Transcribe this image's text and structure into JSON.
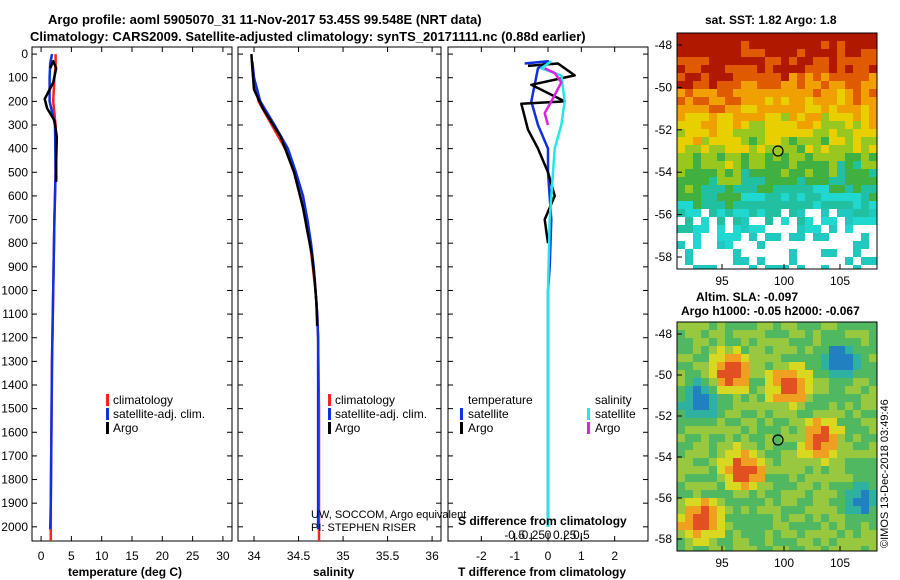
{
  "header": {
    "line1": "Argo profile: aoml 5905070_31 11-Nov-2017 53.45S 99.548E (NRT data)",
    "line2": "Climatology: CARS2009. Satellite-adjusted climatology: synTS_20171111.nc (0.88d earlier)"
  },
  "colors": {
    "climatology": "#ff2020",
    "satellite": "#1030e0",
    "argo": "#000000",
    "salinity_satellite": "#20e8e8",
    "salinity_argo": "#e020e0"
  },
  "depth_axis": {
    "ticks": [
      0,
      100,
      200,
      300,
      400,
      500,
      600,
      700,
      800,
      900,
      1000,
      1100,
      1200,
      1300,
      1400,
      1500,
      1600,
      1700,
      1800,
      1900,
      2000
    ],
    "max": 2060
  },
  "chart_data": [
    {
      "type": "line",
      "id": "temperature",
      "xlabel": "temperature (deg C)",
      "xlim": [
        -1.5,
        31.5
      ],
      "xticks": [
        0,
        5,
        10,
        15,
        20,
        25,
        30
      ],
      "xtick_labels": [
        "0",
        "5",
        "10",
        "15",
        "20",
        "25",
        "30"
      ],
      "ylim": [
        2060,
        -30
      ],
      "series": [
        {
          "name": "climatology",
          "color": "#ff2020",
          "points": [
            [
              2.4,
              0
            ],
            [
              2.4,
              50
            ],
            [
              2.2,
              100
            ],
            [
              2.0,
              200
            ],
            [
              2.4,
              300
            ],
            [
              2.4,
              500
            ],
            [
              2.2,
              700
            ],
            [
              2.0,
              1000
            ],
            [
              1.8,
              1300
            ],
            [
              1.7,
              1600
            ],
            [
              1.6,
              1900
            ],
            [
              1.6,
              2060
            ]
          ]
        },
        {
          "name": "satellite-adj. clim.",
          "color": "#1030e0",
          "points": [
            [
              1.8,
              0
            ],
            [
              1.5,
              40
            ],
            [
              1.4,
              100
            ],
            [
              1.4,
              200
            ],
            [
              2.3,
              300
            ],
            [
              2.4,
              500
            ],
            [
              2.2,
              700
            ],
            [
              2.0,
              1000
            ],
            [
              1.8,
              1300
            ],
            [
              1.7,
              1600
            ],
            [
              1.6,
              1900
            ],
            [
              1.5,
              2010
            ]
          ]
        },
        {
          "name": "Argo",
          "color": "#000000",
          "points": [
            [
              1.5,
              60
            ],
            [
              2.0,
              30
            ],
            [
              2.5,
              60
            ],
            [
              2.0,
              120
            ],
            [
              0.6,
              190
            ],
            [
              1.0,
              230
            ],
            [
              2.2,
              280
            ],
            [
              2.6,
              350
            ],
            [
              2.5,
              450
            ],
            [
              2.5,
              540
            ]
          ]
        }
      ],
      "legend": [
        "climatology",
        "satellite-adj. clim.",
        "Argo"
      ]
    },
    {
      "type": "line",
      "id": "salinity",
      "xlabel": "salinity",
      "xlim": [
        33.82,
        36.1
      ],
      "xticks": [
        34,
        34.5,
        35,
        35.5,
        36
      ],
      "xtick_labels": [
        "34",
        "34.5",
        "35",
        "35.5",
        "36"
      ],
      "ylim": [
        2060,
        -30
      ],
      "series": [
        {
          "name": "climatology",
          "color": "#ff2020",
          "points": [
            [
              33.98,
              30
            ],
            [
              34.0,
              100
            ],
            [
              34.05,
              200
            ],
            [
              34.2,
              300
            ],
            [
              34.35,
              400
            ],
            [
              34.45,
              500
            ],
            [
              34.52,
              600
            ],
            [
              34.58,
              700
            ],
            [
              34.63,
              800
            ],
            [
              34.66,
              900
            ],
            [
              34.69,
              1000
            ],
            [
              34.71,
              1100
            ],
            [
              34.72,
              1200
            ],
            [
              34.73,
              1500
            ],
            [
              34.73,
              2060
            ]
          ]
        },
        {
          "name": "satellite-adj. clim.",
          "color": "#1030e0",
          "points": [
            [
              33.98,
              30
            ],
            [
              34.0,
              100
            ],
            [
              34.07,
              200
            ],
            [
              34.23,
              300
            ],
            [
              34.38,
              400
            ],
            [
              34.47,
              500
            ],
            [
              34.55,
              600
            ],
            [
              34.6,
              700
            ],
            [
              34.64,
              800
            ],
            [
              34.67,
              900
            ],
            [
              34.69,
              1000
            ],
            [
              34.71,
              1100
            ],
            [
              34.72,
              1200
            ],
            [
              34.72,
              1500
            ],
            [
              34.72,
              2010
            ]
          ]
        },
        {
          "name": "Argo",
          "color": "#000000",
          "points": [
            [
              33.97,
              0
            ],
            [
              33.98,
              50
            ],
            [
              34.0,
              150
            ],
            [
              34.1,
              230
            ],
            [
              34.3,
              350
            ],
            [
              34.45,
              500
            ],
            [
              34.55,
              650
            ],
            [
              34.6,
              750
            ],
            [
              34.65,
              850
            ],
            [
              34.68,
              950
            ],
            [
              34.7,
              1050
            ],
            [
              34.71,
              1150
            ]
          ]
        }
      ],
      "legend": [
        "climatology",
        "satellite-adj. clim.",
        "Argo"
      ],
      "annotation": {
        "line1": "UW, SOCCOM, Argo equivalent",
        "line2": "PI: STEPHEN RISER"
      }
    },
    {
      "type": "line",
      "id": "differences",
      "xlabel": "T difference from climatology",
      "top_label": "S difference from climatology",
      "xlim": [
        -3.0,
        3.0
      ],
      "xticks": [
        -2,
        -1,
        0,
        1,
        2
      ],
      "xtick_labels": [
        "-2",
        "-1",
        "0",
        "1",
        "2"
      ],
      "top_ticks": [
        -1.0,
        -0.5,
        0,
        0.5,
        1.0
      ],
      "top_tick_labels": [
        "-0.5",
        "-0.25",
        "0",
        "0.25",
        "0.5"
      ],
      "ylim": [
        2060,
        -30
      ],
      "series": [
        {
          "name": "temperature satellite",
          "color": "#1030e0",
          "points": [
            [
              -0.7,
              40
            ],
            [
              0.0,
              30
            ],
            [
              -0.3,
              60
            ],
            [
              -0.5,
              200
            ],
            [
              -0.3,
              300
            ],
            [
              0.0,
              400
            ],
            [
              0.0,
              500
            ],
            [
              0.1,
              700
            ],
            [
              0.05,
              900
            ],
            [
              0.0,
              1000
            ],
            [
              0.0,
              1500
            ],
            [
              0.0,
              2000
            ]
          ]
        },
        {
          "name": "temperature Argo",
          "color": "#000000",
          "points": [
            [
              -0.6,
              50
            ],
            [
              0.3,
              40
            ],
            [
              0.8,
              90
            ],
            [
              -0.5,
              130
            ],
            [
              0.5,
              200
            ],
            [
              -0.8,
              210
            ],
            [
              -0.6,
              320
            ],
            [
              -0.3,
              400
            ],
            [
              0.0,
              500
            ],
            [
              0.2,
              600
            ],
            [
              -0.1,
              700
            ],
            [
              0.0,
              800
            ]
          ]
        },
        {
          "name": "salinity satellite",
          "color": "#20e8e8",
          "points": [
            [
              0.1,
              30
            ],
            [
              -0.2,
              60
            ],
            [
              0.4,
              90
            ],
            [
              0.5,
              200
            ],
            [
              0.4,
              300
            ],
            [
              0.2,
              400
            ],
            [
              0.15,
              500
            ],
            [
              0.05,
              700
            ],
            [
              0.0,
              1000
            ],
            [
              0.0,
              2000
            ]
          ]
        },
        {
          "name": "salinity Argo",
          "color": "#e020e0",
          "points": [
            [
              -0.1,
              60
            ],
            [
              0.2,
              80
            ],
            [
              0.4,
              120
            ],
            [
              0.1,
              200
            ],
            [
              -0.1,
              250
            ],
            [
              0.0,
              300
            ]
          ]
        }
      ],
      "legend_temperature": {
        "title": "temperature",
        "items": [
          "satellite",
          "Argo"
        ]
      },
      "legend_salinity": {
        "title": "salinity",
        "items": [
          "satellite",
          "Argo"
        ]
      }
    }
  ],
  "maps": {
    "sst": {
      "title": "sat. SST: 1.82  Argo: 1.8",
      "lat_ticks": [
        "-48",
        "-50",
        "-52",
        "-54",
        "-56",
        "-58"
      ],
      "lon_ticks": [
        "95",
        "100",
        "105"
      ],
      "marker_lat": -53.45,
      "marker_lon": 99.548
    },
    "sla": {
      "title_line1": "Altim. SLA: -0.097",
      "title_line2": "Argo h1000: -0.05 h2000: -0.067",
      "lat_ticks": [
        "-48",
        "-50",
        "-52",
        "-54",
        "-56",
        "-58"
      ],
      "lon_ticks": [
        "95",
        "100",
        "105"
      ],
      "marker_lat": -53.45,
      "marker_lon": 99.548
    },
    "credit": "©IMOS 13-Dec-2018 03:49:46"
  }
}
